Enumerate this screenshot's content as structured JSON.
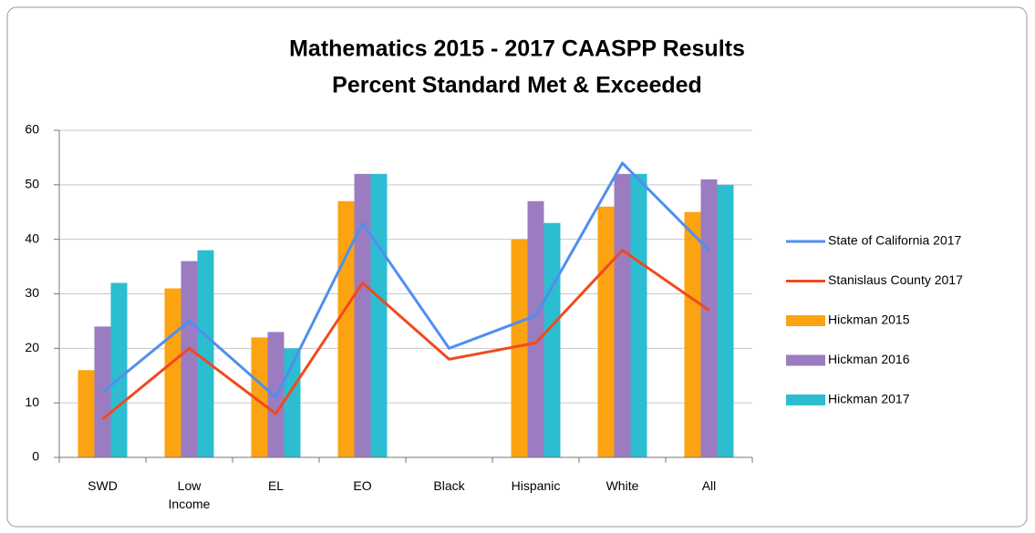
{
  "chart_data": {
    "type": "bar",
    "title": "Mathematics 2015 - 2017 CAASPP Results",
    "subtitle": "Percent Standard Met & Exceeded",
    "categories": [
      "SWD",
      "Low Income",
      "EL",
      "EO",
      "Black",
      "Hispanic",
      "White",
      "All"
    ],
    "series": [
      {
        "name": "State of California 2017",
        "type": "line",
        "color": "#4f8ff0",
        "values": [
          12,
          25,
          11,
          43,
          20,
          26,
          54,
          38
        ]
      },
      {
        "name": "Stanislaus County 2017",
        "type": "line",
        "color": "#f04a1e",
        "values": [
          7,
          20,
          8,
          32,
          18,
          21,
          38,
          27
        ]
      },
      {
        "name": "Hickman 2015",
        "type": "bar",
        "color": "#fca312",
        "values": [
          16,
          31,
          22,
          47,
          null,
          40,
          46,
          45
        ]
      },
      {
        "name": "Hickman 2016",
        "type": "bar",
        "color": "#9c7cc0",
        "values": [
          24,
          36,
          23,
          52,
          null,
          47,
          52,
          51
        ]
      },
      {
        "name": "Hickman 2017",
        "type": "bar",
        "color": "#2cbdd1",
        "values": [
          32,
          38,
          20,
          52,
          null,
          43,
          52,
          50
        ]
      }
    ],
    "ylim": [
      0,
      60
    ],
    "yticks": [
      0,
      10,
      20,
      30,
      40,
      50,
      60
    ],
    "grid": true,
    "legend": "right"
  }
}
